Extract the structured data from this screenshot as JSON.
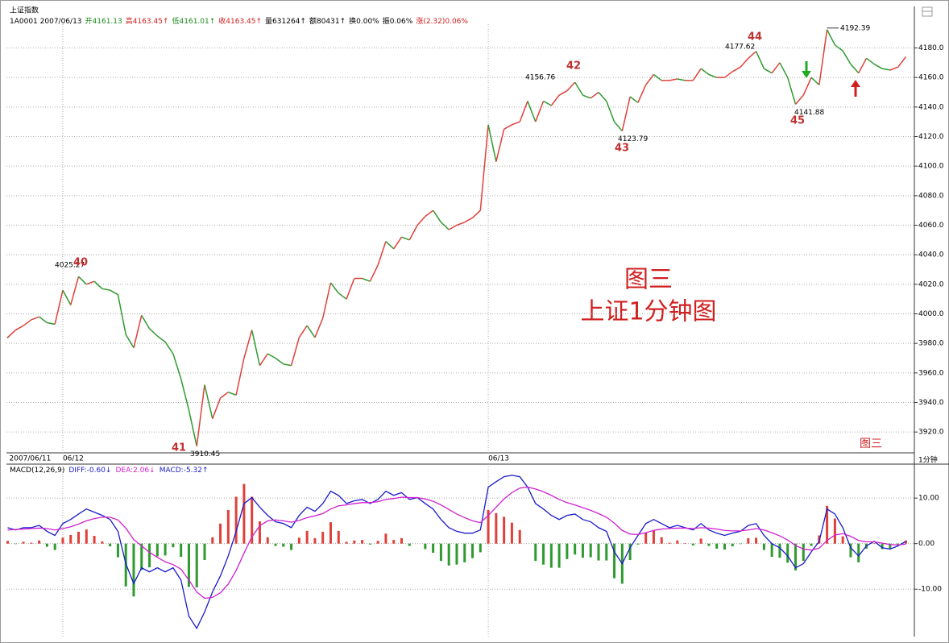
{
  "chart_data": [
    {
      "type": "line",
      "title": "上证指数",
      "info": [
        {
          "text": "1A0001 2007/06/13",
          "color": "#000000"
        },
        {
          "text": "开4161.13",
          "color": "#1a8a1a"
        },
        {
          "text": "高4163.45↑",
          "color": "#d02020"
        },
        {
          "text": "低4161.01↑",
          "color": "#1a8a1a"
        },
        {
          "text": "收4163.45↑",
          "color": "#d02020"
        },
        {
          "text": "量631264↑",
          "color": "#000000"
        },
        {
          "text": "额80431↑",
          "color": "#000000"
        },
        {
          "text": "换0.00%",
          "color": "#000000"
        },
        {
          "text": "振0.06%",
          "color": "#000000"
        },
        {
          "text": "涨(2.32)0.06%",
          "color": "#d02020"
        }
      ],
      "categories": [
        "2007/06/11",
        null,
        null,
        null,
        null,
        null,
        null,
        "06/12",
        null,
        null,
        null,
        null,
        null,
        null,
        null,
        null,
        null,
        null,
        null,
        null,
        null,
        null,
        null,
        null,
        null,
        null,
        null,
        null,
        null,
        null,
        null,
        null,
        null,
        null,
        null,
        null,
        null,
        null,
        null,
        null,
        null,
        null,
        null,
        null,
        null,
        null,
        null,
        null,
        null,
        null,
        null,
        null,
        null,
        null,
        null,
        null,
        null,
        null,
        null,
        null,
        null,
        "06/13",
        null,
        null,
        null,
        null,
        null,
        null,
        null,
        null,
        null,
        null,
        null,
        null,
        null,
        null,
        null,
        null,
        null,
        null,
        null,
        null,
        null,
        null,
        null,
        null,
        null,
        null,
        null,
        null,
        null,
        null,
        null,
        null,
        null,
        null,
        null,
        null,
        null,
        null,
        null,
        null,
        null,
        null,
        null,
        null,
        null,
        null,
        null,
        null,
        null,
        null,
        null,
        null,
        null
      ],
      "values": [
        3984,
        3989,
        3992,
        3996,
        3998,
        3994,
        3993,
        4016,
        4006,
        4025.27,
        4020,
        4022,
        4017,
        4016,
        4013,
        3986,
        3977,
        3999,
        3990,
        3985,
        3981,
        3973,
        3956,
        3935,
        3910.45,
        3952,
        3929,
        3943,
        3947,
        3945,
        3970,
        3989,
        3965,
        3973,
        3970,
        3966,
        3965,
        3984,
        3992,
        3984,
        3997,
        4021,
        4014,
        4010,
        4024,
        4024,
        4022,
        4033,
        4049,
        4044,
        4052,
        4050,
        4060,
        4066,
        4070,
        4062,
        4057,
        4060,
        4062,
        4065,
        4070,
        4128,
        4103,
        4125,
        4128,
        4130,
        4144,
        4130,
        4144,
        4141,
        4148,
        4151,
        4156.76,
        4148,
        4146,
        4150,
        4144,
        4130,
        4123.79,
        4147,
        4143,
        4155,
        4162,
        4158,
        4158,
        4159,
        4158,
        4158,
        4166,
        4162,
        4160,
        4160,
        4164,
        4167,
        4173,
        4177.62,
        4166,
        4163,
        4170,
        4160,
        4141.88,
        4148,
        4160,
        4155,
        4192.39,
        4182,
        4178,
        4169,
        4163,
        4173,
        4169,
        4166,
        4165,
        4167,
        4174
      ],
      "up_color": "#e0403a",
      "down_color": "#2f9a2f",
      "ylim": [
        3907,
        4207
      ],
      "yticks": [
        {
          "value": 3920,
          "label": "3920.0"
        },
        {
          "value": 3940,
          "label": "3940.0"
        },
        {
          "value": 3960,
          "label": "3960.0"
        },
        {
          "value": 3980,
          "label": "3980.0"
        },
        {
          "value": 4000,
          "label": "4000.0"
        },
        {
          "value": 4020,
          "label": "4020.0"
        },
        {
          "value": 4040,
          "label": "4040.0"
        },
        {
          "value": 4060,
          "label": "4060.0"
        },
        {
          "value": 4080,
          "label": "4080.0"
        },
        {
          "value": 4100,
          "label": "4100.0"
        },
        {
          "value": 4120,
          "label": "4120.0"
        },
        {
          "value": 4140,
          "label": "4140.0"
        },
        {
          "value": 4160,
          "label": "4160.0"
        },
        {
          "value": 4180,
          "label": "4180.0"
        }
      ],
      "grid": true,
      "annotations": [
        "40",
        "41",
        "42",
        "43",
        "44",
        "45"
      ],
      "watermark": [
        "图三",
        "上证1分钟图"
      ],
      "stamp": "图三",
      "period": "1分钟"
    },
    {
      "type": "macd",
      "title": "MACD(12,26,9)",
      "series": [
        {
          "name": "DIFF:-0.60↓",
          "color": "#1a1acc",
          "values": [
            3.5,
            3,
            3.5,
            3.5,
            4,
            2.7,
            1.8,
            4.4,
            5.3,
            6.5,
            7.6,
            6.9,
            6.2,
            5.3,
            2.7,
            -4.4,
            -8.8,
            -5.3,
            -6.2,
            -5.3,
            -6.2,
            -5.3,
            -8,
            -15.9,
            -18.6,
            -15,
            -10.6,
            -7.1,
            -2.7,
            2.7,
            8.8,
            10.1,
            8,
            6.2,
            4.8,
            4.4,
            3.5,
            6.2,
            8,
            7.1,
            8.8,
            11.5,
            10.6,
            8.8,
            9.4,
            9.7,
            8.8,
            9.7,
            11.5,
            10.6,
            11.2,
            9.7,
            10.1,
            8.8,
            7.6,
            5.3,
            3.5,
            2.7,
            2.3,
            2.3,
            3,
            12.4,
            13.6,
            14.7,
            15,
            14.7,
            12.4,
            8.8,
            7.6,
            6.2,
            5.3,
            6.2,
            6.5,
            5.3,
            4.8,
            3.5,
            2.7,
            -1.8,
            -4.4,
            -0.9,
            1.8,
            4.4,
            5.3,
            4.4,
            3.5,
            4,
            3.5,
            3,
            4.4,
            3,
            2.3,
            1.8,
            2.3,
            2.7,
            4,
            4.4,
            1.8,
            0,
            -0.9,
            -2.7,
            -5.3,
            -4.4,
            -1.8,
            0.5,
            7.6,
            6.5,
            3.5,
            -0.9,
            -2.7,
            -0.5,
            0.5,
            -0.9,
            -1.2,
            -0.5,
            0.5
          ]
        },
        {
          "name": "DEA:2.06↓",
          "color": "#d020d0",
          "values": [
            3,
            3.1,
            3.2,
            3.3,
            3.4,
            3.3,
            3,
            3.3,
            3.7,
            4.3,
            5,
            5.5,
            5.8,
            5.8,
            5.2,
            3.4,
            0.9,
            -0.5,
            -1.9,
            -3,
            -4,
            -4.6,
            -5.6,
            -8,
            -10.6,
            -12,
            -11.8,
            -10.8,
            -8.9,
            -5.9,
            -2.1,
            1.5,
            3.9,
            5,
            5.2,
            5,
            4.7,
            5.1,
            5.7,
            6.1,
            6.6,
            7.6,
            8.3,
            8.5,
            8.8,
            9,
            9,
            9.2,
            9.7,
            9.9,
            10.2,
            10.1,
            10.1,
            9.8,
            9.3,
            8.5,
            7.5,
            6.5,
            5.7,
            5,
            4.6,
            6.2,
            8,
            9.8,
            11.2,
            12.2,
            12.4,
            12,
            11.4,
            10.6,
            9.7,
            9,
            8.5,
            7.9,
            7.3,
            6.6,
            5.8,
            4.5,
            2.9,
            2.1,
            2,
            2.4,
            2.9,
            3.2,
            3.3,
            3.4,
            3.4,
            3.3,
            3.5,
            3.4,
            3.2,
            2.9,
            2.8,
            2.8,
            3,
            3.3,
            3,
            2.4,
            1.7,
            0.8,
            -0.4,
            -1.2,
            -1.4,
            -1,
            0.7,
            1.9,
            2.2,
            1.6,
            0.7,
            0.4,
            0.4,
            0.1,
            -0.2,
            -0.3,
            -0.1
          ]
        }
      ],
      "histogram": {
        "name": "MACD:-5.32↑",
        "name_color": "#1a1acc",
        "up_color": "#e0403a",
        "down_color": "#2f9a2f",
        "values": [
          0.6,
          -0.1,
          0.4,
          0.2,
          0.7,
          -0.7,
          -1.4,
          1.3,
          1.9,
          2.6,
          3.1,
          1.7,
          0.5,
          -0.6,
          -3,
          -9.4,
          -11.6,
          -5.8,
          -5.2,
          -2.8,
          -2.6,
          -0.8,
          -2.9,
          -9.5,
          -9.6,
          -3.6,
          1.4,
          4.4,
          7.4,
          10.3,
          13.1,
          10.3,
          4.9,
          1.4,
          -0.5,
          -0.7,
          -1.4,
          1.3,
          2.8,
          1.2,
          2.6,
          4.7,
          2.8,
          0.4,
          0.7,
          0.8,
          -0.2,
          0.6,
          2.2,
          0.8,
          1.2,
          -0.5,
          0,
          -1.2,
          -2,
          -3.8,
          -4.8,
          -4.6,
          -4.1,
          -3.2,
          -1.9,
          7.4,
          6.7,
          5.9,
          4.6,
          3,
          0,
          -3.8,
          -4.6,
          -5.3,
          -5.3,
          -3.4,
          -2.4,
          -3.1,
          -3,
          -3.7,
          -3.7,
          -7.6,
          -8.8,
          -3.6,
          -0.2,
          2.4,
          2.9,
          1.4,
          0.2,
          0.7,
          0.1,
          -0.4,
          1.1,
          -0.5,
          -1.1,
          -1.3,
          -0.6,
          -0.1,
          1.2,
          1.3,
          -1.4,
          -2.9,
          -3.1,
          -4.2,
          -5.9,
          -3.8,
          -0.5,
          1.8,
          8.3,
          5.5,
          1.6,
          -3,
          -4.1,
          -1.1,
          0.1,
          -1.2,
          -1.2,
          -0.2,
          0.7
        ]
      },
      "ylim": [
        -20.4,
        17.1
      ],
      "yticks": [
        {
          "value": -10,
          "label": "-10.00"
        },
        {
          "value": 0,
          "label": "0.00"
        },
        {
          "value": 10,
          "label": "10.00"
        }
      ],
      "grid": true
    }
  ]
}
